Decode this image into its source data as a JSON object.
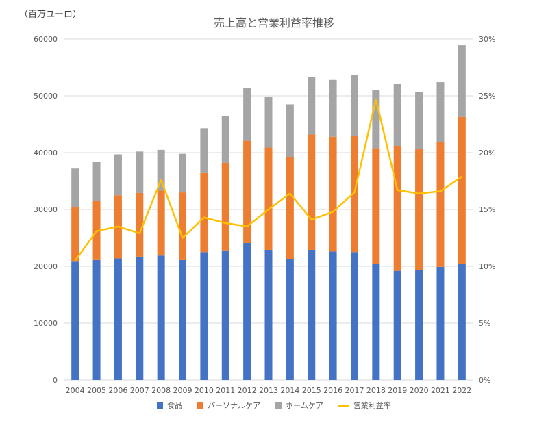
{
  "chart_data": {
    "type": "bar",
    "title": "売上高と営業利益率推移",
    "unit_label": "（百万ユーロ）",
    "categories": [
      "2004",
      "2005",
      "2006",
      "2007",
      "2008",
      "2009",
      "2010",
      "2011",
      "2012",
      "2013",
      "2014",
      "2015",
      "2016",
      "2017",
      "2018",
      "2019",
      "2020",
      "2021",
      "2022"
    ],
    "stacked": true,
    "series": [
      {
        "name": "食品",
        "type": "bar",
        "axis": "left",
        "color": "#4472C4",
        "values": [
          20800,
          21100,
          21400,
          21700,
          21900,
          21100,
          22500,
          22800,
          24100,
          22900,
          21300,
          22900,
          22600,
          22500,
          20400,
          19200,
          19300,
          19900,
          20400
        ]
      },
      {
        "name": "パーソナルケア",
        "type": "bar",
        "axis": "left",
        "color": "#ED7D31",
        "values": [
          9600,
          10400,
          11100,
          11200,
          11400,
          11900,
          13900,
          15400,
          18000,
          18000,
          17900,
          20300,
          20200,
          20500,
          20400,
          21900,
          21300,
          22000,
          25900
        ]
      },
      {
        "name": "ホームケア",
        "type": "bar",
        "axis": "left",
        "color": "#A5A5A5",
        "values": [
          6800,
          6900,
          7200,
          7300,
          7200,
          6800,
          7900,
          8300,
          9300,
          8900,
          9300,
          10100,
          10000,
          10700,
          10200,
          11000,
          10100,
          10500,
          12600
        ]
      },
      {
        "name": "営業利益率",
        "type": "line",
        "axis": "right",
        "color": "#FFC000",
        "values": [
          10.5,
          13.1,
          13.5,
          12.9,
          17.6,
          12.5,
          14.3,
          13.8,
          13.5,
          15.0,
          16.4,
          14.1,
          14.8,
          16.5,
          24.7,
          16.7,
          16.4,
          16.6,
          17.9
        ]
      }
    ],
    "ylim_left": [
      0,
      60000
    ],
    "yticks_left": [
      "0",
      "10000",
      "20000",
      "30000",
      "40000",
      "50000",
      "60000"
    ],
    "ylim_right": [
      0,
      30
    ],
    "yticks_right": [
      "0%",
      "5%",
      "10%",
      "15%",
      "20%",
      "25%",
      "30%"
    ],
    "grid": true,
    "legend_position": "bottom"
  }
}
